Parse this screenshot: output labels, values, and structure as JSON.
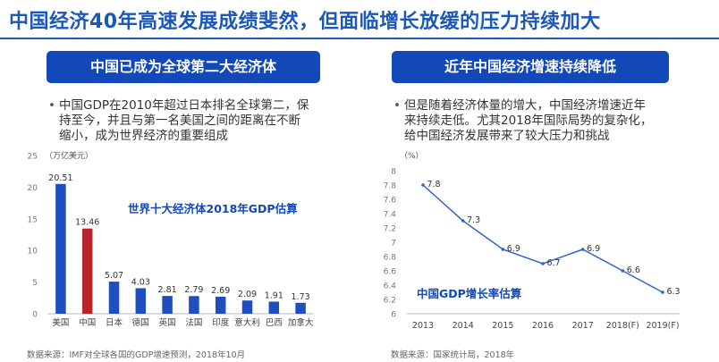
{
  "page": {
    "title": "中国经济40年高速发展成绩斐然，但面临增长放缓的压力持续加大"
  },
  "left_panel": {
    "banner": "中国已成为全球第二大经济体",
    "bullet": "中国GDP在2010年超过日本排名全球第二，保持至今，并且与第一名美国之间的距离在不断缩小，成为世界经济的重要组成",
    "bullet_lines": [
      "中国GDP在2010年超过日本排名全球第二，保",
      "持至今，并且与第一名美国之间的距离在不断",
      "缩小，成为世界经济的重要组成"
    ],
    "source": "数据来源：IMF对全球各国的GDP增速预测，2018年10月"
  },
  "right_panel": {
    "banner": "近年中国经济增速持续降低",
    "bullet": "但是随着经济体量的增大，中国经济增速近年来持续走低。尤其2018年国际局势的复杂化，给中国经济发展带来了较大压力和挑战",
    "bullet_lines": [
      "但是随着经济体量的增大，中国经济增速近年",
      "来持续走低。尤其2018年国际局势的复杂化，",
      "给中国经济发展带来了较大压力和挑战"
    ],
    "source": "数据来源：国家统计局，2018年"
  },
  "colors": {
    "accent": "#1b58b8",
    "banner": "#1248b8",
    "bar_default": "#1f4fbf",
    "bar_highlight": "#b8262b",
    "line": "#2f63c8"
  },
  "chart_data": [
    {
      "type": "bar",
      "title": "世界十大经济体2018年GDP估算",
      "unit_label": "（万亿美元）",
      "xlabel": "",
      "ylabel": "",
      "categories": [
        "美国",
        "中国",
        "日本",
        "德国",
        "英国",
        "法国",
        "印度",
        "意大利",
        "巴西",
        "加拿大"
      ],
      "values": [
        20.51,
        13.46,
        5.07,
        4.03,
        2.81,
        2.79,
        2.69,
        2.09,
        1.91,
        1.73
      ],
      "value_labels": [
        "20.51",
        "13.46",
        "5.07",
        "4.03",
        "2.81",
        "2.79",
        "2.69",
        "2.09",
        "1.91",
        "1.73"
      ],
      "highlight_category": "中国",
      "ylim": [
        0,
        25
      ],
      "yticks": [
        0,
        5,
        10,
        15,
        20,
        25
      ],
      "grid": false,
      "legend": "none"
    },
    {
      "type": "line",
      "title": "中国GDP增长率估算",
      "unit_label": "（%）",
      "xlabel": "",
      "ylabel": "",
      "categories": [
        "2013",
        "2014",
        "2015",
        "2016",
        "2017",
        "2018(F)",
        "2019(F)"
      ],
      "values": [
        7.8,
        7.3,
        6.9,
        6.7,
        6.9,
        6.6,
        6.3
      ],
      "value_labels": [
        "7.8",
        "7.3",
        "6.9",
        "6.7",
        "6.9",
        "6.6",
        "6.3"
      ],
      "ylim": [
        6,
        8
      ],
      "yticks": [
        6,
        6.2,
        6.4,
        6.6,
        6.8,
        7,
        7.2,
        7.4,
        7.6,
        7.8,
        8
      ],
      "ytick_labels": [
        "6",
        "6.2",
        "6.4",
        "6.6",
        "6.8",
        "7",
        "7.2",
        "7.4",
        "7.6",
        "7.8",
        "8"
      ],
      "grid": false,
      "legend": "none"
    }
  ]
}
